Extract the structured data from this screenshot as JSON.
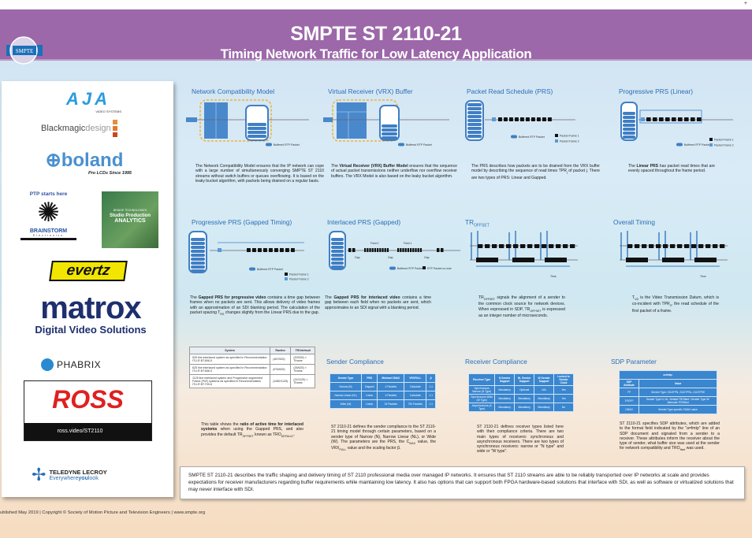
{
  "header": {
    "title": "SMPTE ST 2110-21",
    "subtitle": "Timing Network Traffic for Low Latency Application",
    "logo_text": "SMPTE",
    "corner_mark": "+"
  },
  "colors": {
    "header_purple": "#9c68a9",
    "title_blue": "#2a6db5",
    "table_blue": "#3a86cf",
    "diagram_blue": "#3f7fc4",
    "buffer_outline": "#f0b23a"
  },
  "sponsors": {
    "aja": {
      "name": "AJA",
      "tagline": "VIDEO SYSTEMS"
    },
    "blackmagic": {
      "name": "Blackmagic",
      "name2": "design"
    },
    "boland": {
      "name": "boland",
      "tagline": "Pro LCDs Since 1995"
    },
    "brainstorm": {
      "ptp": "PTP starts here",
      "name": "BRAINSTORM",
      "sub": "Electronics"
    },
    "bridge": {
      "brand": "BRIDGE TECHNOLOGIES",
      "line1": "Studio Production",
      "line2": "ANALYTICS"
    },
    "evertz": {
      "name": "evertz"
    },
    "matrox": {
      "name": "matrox",
      "tagline": "Digital Video Solutions"
    },
    "phabrix": {
      "name": "PHABRIX"
    },
    "ross": {
      "name": "ROSS",
      "url": "ross.video/ST2110"
    },
    "teledyne": {
      "name": "TELEDYNE LECROY",
      "tagline_a": "Everywhere",
      "tagline_b": "you",
      "tagline_c": "look"
    }
  },
  "sections": {
    "ncm": {
      "title": "Network Compatibility Model",
      "legend": "Buffered RTP Packet",
      "text": [
        {
          "t": "The Network Compatibility Model ensures that the IP network can cope with a large number of simultaneously converging SMPTE ST 2110 streams without switch buffers or queues overflowing. It is based on the leaky bucket algorithm, with packets being drained on a regular basis."
        }
      ]
    },
    "vrx": {
      "title": "Virtual Receiver (VRX) Buffer",
      "legend": "Buffered RTP Packet",
      "text": [
        {
          "t": "The "
        },
        {
          "t": "Virtual Receiver (VRX) Buffer Model",
          "b": true
        },
        {
          "t": " ensures that the sequence of actual packet transmissions neither underflow nor overflow receiver buffers. The VRX Model is also based on the leaky bucket algorithm."
        }
      ]
    },
    "prs": {
      "title": "Packet Read Schedule (PRS)",
      "legend": "Buffered RTP Packet",
      "frame1": "Packet Frame 1",
      "frame2": "Packet Frame 2",
      "text": [
        {
          "t": "The PRS describes how packets are to be drained from the VRX buffer model by describing the sequence of read times TPR"
        },
        {
          "t": "j",
          "sub": true
        },
        {
          "t": " of packet j. There are two types of PRS: Linear and Gapped."
        }
      ]
    },
    "linear": {
      "title": "Progressive PRS (Linear)",
      "legend": "Buffered RTP Packet",
      "frame1": "Packet Frame 1",
      "frame2": "Packet Frame 2",
      "text": [
        {
          "t": "The "
        },
        {
          "t": "Linear PRS",
          "b": true
        },
        {
          "t": " has packet read times that are evenly spaced throughout the frame period."
        }
      ]
    },
    "gapped": {
      "title": "Progressive PRS (Gapped Timing)",
      "legend": "Buffered RTP Packet",
      "frame1": "Packet Frame 1",
      "frame2": "Packet Frame 2",
      "text": [
        {
          "t": "The "
        },
        {
          "t": "Gapped PRS for progressive video",
          "b": true
        },
        {
          "t": " contains a time gap between frames when no packets are sent. This allows delivery of video frames with an approximation of an SDI blanking period. The calculation of the packet spacing T"
        },
        {
          "t": "RS",
          "sub": true
        },
        {
          "t": " changes slightly from the Linear PRS due to the gap."
        }
      ]
    },
    "interlaced": {
      "title": "Interlaced PRS (Gapped)",
      "legend": "Buffered RTP Packet",
      "legend2": "RTP Packet on wire",
      "gap": "Gap",
      "field1": "Field 1",
      "field2": "Field 2",
      "text": [
        {
          "t": "The "
        },
        {
          "t": "Gapped PRS for interlaced video",
          "b": true
        },
        {
          "t": " contains a time gap between each field when no packets are sent, which approximates to an SDI signal with a blanking period."
        }
      ]
    },
    "troffset": {
      "title": "TR",
      "title_sub": "OFFSET",
      "time": "Time",
      "text": [
        {
          "t": "TR"
        },
        {
          "t": "OFFSET",
          "sub": true
        },
        {
          "t": " signals the alignment of a sender to the common clock source for network devices. When expressed in SDP, TR"
        },
        {
          "t": "OFFSET",
          "sub": true
        },
        {
          "t": " is expressed as an integer number of microseconds."
        }
      ]
    },
    "overall": {
      "title": "Overall Timing",
      "time": "Time",
      "text": [
        {
          "t": "T"
        },
        {
          "t": "VD",
          "sub": true
        },
        {
          "t": " is the Video Transmission Datum, which is co-incident with TPR"
        },
        {
          "t": "0",
          "sub": true
        },
        {
          "t": ", the read schedule of the first packet of a frame."
        }
      ]
    },
    "ratio": {
      "headers": [
        "System",
        "Ractive",
        "TROdefault"
      ],
      "rows": [
        [
          "525 line interlaced system as specified in Recommendation ITU-R BT.656-5",
          "(487/525)",
          "(20/525) × Tframe"
        ],
        [
          "625 line interlaced system as specified in Recommendation ITU-R BT.656-5",
          "(576/625)",
          "(26/625) × Tframe"
        ],
        [
          "1125 line interlaced system and Progressive segmented Frame (PsF) systems as specified in Recommendation ITU-R BT.709-6",
          "(1080/1125)",
          "(22/1125) × Tframe"
        ]
      ],
      "text": [
        {
          "t": "This table shows the "
        },
        {
          "t": "ratio of active time for interlaced systems",
          "b": true
        },
        {
          "t": " when using the Gapped PRS, and also provides the default TR"
        },
        {
          "t": "OFFSET",
          "sub": true
        },
        {
          "t": " known as TRO"
        },
        {
          "t": "DEFAULT",
          "sub": true
        },
        {
          "t": "."
        }
      ]
    },
    "sender": {
      "title": "Sender Compliance",
      "headers": [
        "Sender Type",
        "PRS",
        "Minimal CMAX",
        "VRXFULL",
        "β"
      ],
      "rows": [
        [
          "Narrow (N)",
          "Gapped",
          "4 Packets",
          "Calculate",
          "1.1"
        ],
        [
          "Narrow Linear (NL)",
          "Linear",
          "4 Packets",
          "Calculate",
          "1.1"
        ],
        [
          "Wide (W)",
          "Linear",
          "16 Packets",
          "720 Packets",
          "1.1"
        ]
      ],
      "text": [
        {
          "t": "ST 2110-21 defines the sender compliance to the ST 2110-21 timing model through certain parameters, based on a sender type of Narrow (N), Narrow Linear (NL), or Wide (W). The parameters are the PRS, the C"
        },
        {
          "t": "MAX",
          "sub": true
        },
        {
          "t": " value, the VRX"
        },
        {
          "t": "FULL",
          "sub": true
        },
        {
          "t": " value and the scaling factor β."
        }
      ]
    },
    "receiver": {
      "title": "Receiver Compliance",
      "headers": [
        "Receiver Type",
        "N Sender Support",
        "NL Sender Support",
        "W Sender Support",
        "Locked to Sender Clock"
      ],
      "rows": [
        [
          "Synchronous Narrow (N Type)",
          "Mandatory",
          "Optional",
          "N/A",
          "Yes"
        ],
        [
          "Synchronous Wide (W Type)",
          "Mandatory",
          "Mandatory",
          "Mandatory",
          "Yes"
        ],
        [
          "Asynchronous (A Type)",
          "Mandatory",
          "Mandatory",
          "Mandatory",
          "No"
        ]
      ],
      "text": [
        {
          "t": "ST 2110-21 defines receiver types listed here with their compliance criteria. There are two main types of receivers: synchronous and asynchronous receivers. There are two types of synchronous receivers: narrow or \"N type\" and wide or \"W type\"."
        }
      ]
    },
    "sdp": {
      "title": "SDP Parameter",
      "caption": "a=fmtp:",
      "headers": [
        "SDP Attribute",
        "Value"
      ],
      "rows": [
        [
          "TP",
          "Sender Type: 2110TPN, 2110TPNL, 2110TPW"
        ],
        [
          "TROFF",
          "Sender Type N, NL: Default TROffset / Sender Type W: Alternate TROffset"
        ],
        [
          "CMAX",
          "Sender Type specific CMAX value"
        ]
      ],
      "text": [
        {
          "t": "ST 2110-21 specifies SDP attributes, which are added to the format field indicated by the \"a=fmtp\" line of an SDP document and signaled from a sender to a receiver. These attributes inform the receiver about the type of sender, what buffer size was used at the sender for network compatibility and TRO"
        },
        {
          "t": "ffset",
          "sub": true
        },
        {
          "t": " was used."
        }
      ]
    }
  },
  "summary": "SMPTE ST 2110-21 describes the traffic shaping and delivery timing of ST 2110 professional media over managed IP networks.  It ensures that ST 2110 streams are able to be reliably transported over IP networks at scale and provides expectations for receiver manufacturers regarding buffer requirements while maintaining low latency.   It also has options that can support both FPGA hardware-based solutions that interface with SDI, as well as software or virtualized solutions that may never interface with SDI.",
  "footer": "ublished May 2019 | Copyright © Society of Motion Picture and Television Engineers | www.smpte.org"
}
